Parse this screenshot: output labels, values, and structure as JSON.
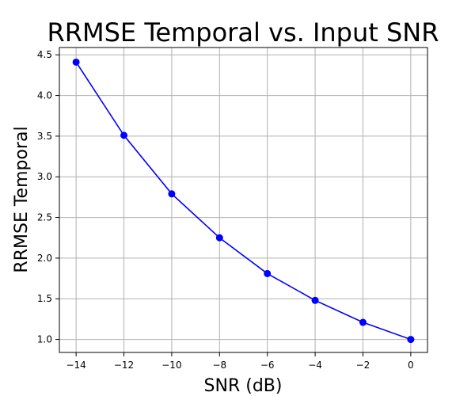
{
  "chart_data": {
    "type": "line",
    "title": "RRMSE Temporal vs. Input SNR",
    "xlabel": "SNR (dB)",
    "ylabel": "RRMSE Temporal",
    "xlim": [
      -14.7,
      0.7
    ],
    "ylim": [
      0.84,
      4.59
    ],
    "xticks": [
      -14,
      -12,
      -10,
      -8,
      -6,
      -4,
      -2,
      0
    ],
    "xtick_labels": [
      "−14",
      "−12",
      "−10",
      "−8",
      "−6",
      "−4",
      "−2",
      "0"
    ],
    "yticks": [
      1.0,
      1.5,
      2.0,
      2.5,
      3.0,
      3.5,
      4.0,
      4.5
    ],
    "ytick_labels": [
      "1.0",
      "1.5",
      "2.0",
      "2.5",
      "3.0",
      "3.5",
      "4.0",
      "4.5"
    ],
    "grid": true,
    "series": [
      {
        "x": [
          -14,
          -12,
          -10,
          -8,
          -6,
          -4,
          -2,
          0
        ],
        "y": [
          4.41,
          3.51,
          2.79,
          2.25,
          1.81,
          1.48,
          1.21,
          1.0
        ],
        "color": "#0000ff",
        "marker": "circle"
      }
    ]
  }
}
